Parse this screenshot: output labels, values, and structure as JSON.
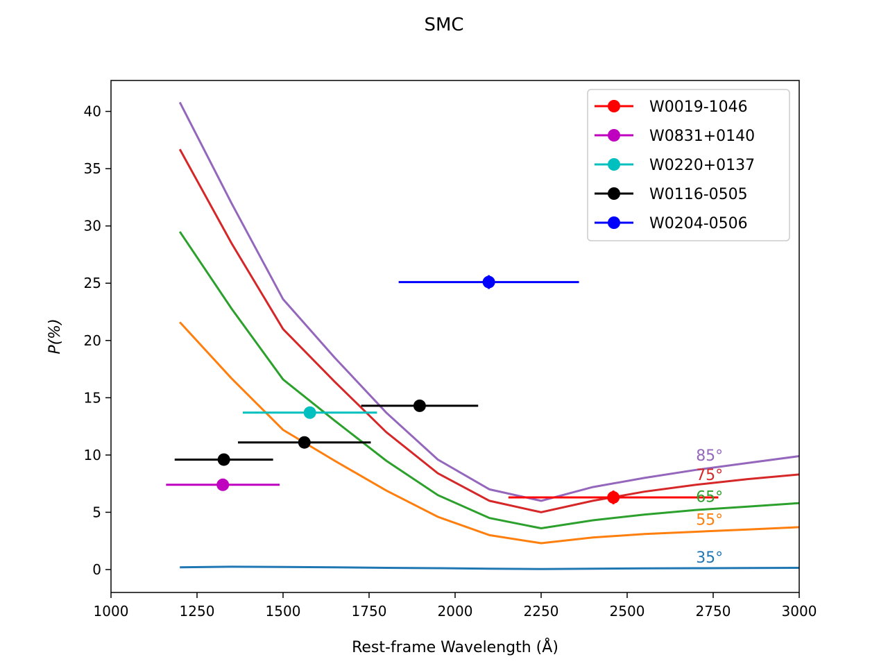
{
  "chart_data": {
    "type": "line",
    "title": "SMC",
    "xlabel": "Rest-frame Wavelength (Å)",
    "ylabel": "P(%)",
    "xlim": [
      1000,
      3000
    ],
    "ylim": [
      -2,
      42.7
    ],
    "xticks": [
      1000,
      1250,
      1500,
      1750,
      2000,
      2250,
      2500,
      2750,
      3000
    ],
    "yticks": [
      0,
      5,
      10,
      15,
      20,
      25,
      30,
      35,
      40
    ],
    "grid": false,
    "legend_position": "top-right",
    "model_x": [
      1200,
      1350,
      1500,
      1650,
      1800,
      1950,
      2100,
      2250,
      2400,
      2550,
      2700,
      2850,
      3000
    ],
    "model_curves": [
      {
        "label": "35°",
        "color": "#1f77b4",
        "values": [
          0.2,
          0.25,
          0.22,
          0.2,
          0.15,
          0.12,
          0.08,
          0.05,
          0.08,
          0.1,
          0.12,
          0.13,
          0.15
        ],
        "label_x": 2700,
        "label_y": 0.6
      },
      {
        "label": "55°",
        "color": "#ff7f0e",
        "values": [
          21.6,
          16.7,
          12.2,
          9.5,
          6.9,
          4.6,
          3.0,
          2.3,
          2.8,
          3.1,
          3.3,
          3.5,
          3.7
        ],
        "label_x": 2700,
        "label_y": 3.9
      },
      {
        "label": "65°",
        "color": "#2ca02c",
        "values": [
          29.5,
          22.8,
          16.6,
          13.0,
          9.5,
          6.5,
          4.5,
          3.6,
          4.3,
          4.8,
          5.2,
          5.5,
          5.8
        ],
        "label_x": 2700,
        "label_y": 5.9
      },
      {
        "label": "75°",
        "color": "#d62728",
        "values": [
          36.7,
          28.5,
          21.0,
          16.4,
          12.0,
          8.4,
          6.0,
          5.0,
          6.0,
          6.8,
          7.4,
          7.9,
          8.3
        ],
        "label_x": 2700,
        "label_y": 7.8
      },
      {
        "label": "85°",
        "color": "#9467bd",
        "values": [
          40.8,
          32.0,
          23.6,
          18.5,
          13.7,
          9.6,
          7.0,
          6.0,
          7.2,
          8.0,
          8.7,
          9.3,
          9.9
        ],
        "label_x": 2700,
        "label_y": 9.5
      }
    ],
    "series": [
      {
        "name": "W0019-1046",
        "color": "#ff0000",
        "points": [
          {
            "x": 2460,
            "y": 6.3,
            "xerr": 305,
            "yerr": 0.6
          }
        ]
      },
      {
        "name": "W0831+0140",
        "color": "#bf00bf",
        "points": [
          {
            "x": 1325,
            "y": 7.4,
            "xerr": 165,
            "yerr": 0.3
          }
        ]
      },
      {
        "name": "W0220+0137",
        "color": "#00bfbf",
        "points": [
          {
            "x": 1578,
            "y": 13.7,
            "xerr": 195,
            "yerr": 0.3
          }
        ]
      },
      {
        "name": "W0116-0505",
        "color": "#000000",
        "points": [
          {
            "x": 1328,
            "y": 9.6,
            "xerr": 143,
            "yerr": 0.3
          },
          {
            "x": 1562,
            "y": 11.1,
            "xerr": 193,
            "yerr": 0.3
          },
          {
            "x": 1897,
            "y": 14.3,
            "xerr": 170,
            "yerr": 0.3
          }
        ]
      },
      {
        "name": "W0204-0506",
        "color": "#0000ff",
        "points": [
          {
            "x": 2098,
            "y": 25.1,
            "xerr": 262,
            "yerr": 0.6
          }
        ]
      }
    ]
  }
}
